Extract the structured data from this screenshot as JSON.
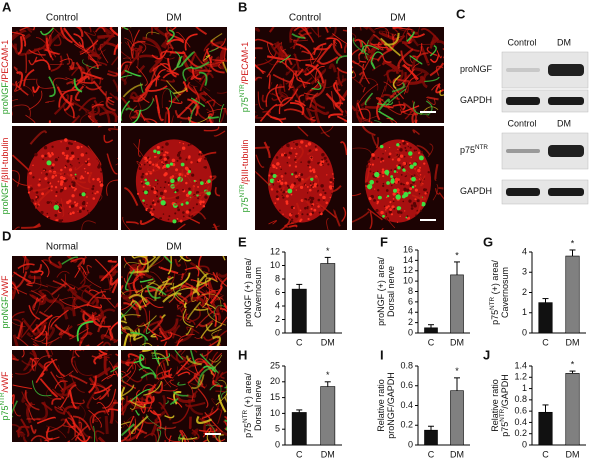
{
  "panel_a": {
    "label": "A",
    "columns": [
      "Control",
      "DM"
    ],
    "row_labels": [
      [
        "proNGF",
        "/PECAM-1"
      ],
      [
        "proNGF",
        "/βIII-tubulin"
      ]
    ]
  },
  "panel_b": {
    "label": "B",
    "columns": [
      "Control",
      "DM"
    ],
    "row_labels": [
      [
        "p75",
        "NTR",
        "/PECAM-1"
      ],
      [
        "p75",
        "NTR",
        "/βIII-tubulin"
      ]
    ]
  },
  "panel_c": {
    "label": "C",
    "blots": [
      {
        "columns": [
          "Control",
          "DM"
        ],
        "bands": [
          [
            "proNGF"
          ],
          [
            "GAPDH"
          ]
        ]
      },
      {
        "columns": [
          "Control",
          "DM"
        ],
        "bands": [
          [
            "p75",
            "NTR"
          ],
          [
            "GAPDH"
          ]
        ]
      }
    ]
  },
  "panel_d": {
    "label": "D",
    "columns": [
      "Normal",
      "DM"
    ],
    "row_labels": [
      [
        "proNGF",
        "/vWF"
      ],
      [
        "p75",
        "NTR",
        "/vWF"
      ]
    ]
  },
  "chart_data": [
    {
      "type": "bar",
      "label": "E",
      "ylabel": [
        [
          "proNGF (+) area/"
        ],
        [
          "Cavernosum"
        ]
      ],
      "categories": [
        "C",
        "DM"
      ],
      "values": [
        6.5,
        10.3
      ],
      "errors": [
        0.7,
        0.9
      ],
      "colors": [
        "#111111",
        "#808080"
      ],
      "annotation": "*",
      "ylim": [
        0,
        12
      ],
      "yticks": [
        0,
        2,
        4,
        6,
        8,
        10,
        12
      ]
    },
    {
      "type": "bar",
      "label": "F",
      "ylabel": [
        [
          "proNGF (+) area/"
        ],
        [
          "Dorsal nerve"
        ]
      ],
      "categories": [
        "C",
        "DM"
      ],
      "values": [
        1,
        11.2
      ],
      "errors": [
        0.6,
        2.5
      ],
      "colors": [
        "#111111",
        "#808080"
      ],
      "annotation": "*",
      "ylim": [
        0,
        16
      ],
      "yticks": [
        0,
        2,
        4,
        6,
        8,
        10,
        12,
        14,
        16
      ]
    },
    {
      "type": "bar",
      "label": "G",
      "ylabel": [
        [
          "p75",
          "NTR",
          " (+) area/"
        ],
        [
          "Cavernosum"
        ]
      ],
      "categories": [
        "C",
        "DM"
      ],
      "values": [
        1.5,
        3.8
      ],
      "errors": [
        0.2,
        0.3
      ],
      "colors": [
        "#111111",
        "#808080"
      ],
      "annotation": "*",
      "ylim": [
        0,
        4
      ],
      "yticks": [
        0,
        1,
        2,
        3,
        4
      ]
    },
    {
      "type": "bar",
      "label": "H",
      "ylabel": [
        [
          "p75",
          "NTR",
          " (+) area/"
        ],
        [
          "Dorsal nerve"
        ]
      ],
      "categories": [
        "C",
        "DM"
      ],
      "values": [
        10.3,
        18.5
      ],
      "errors": [
        0.8,
        1.5
      ],
      "colors": [
        "#111111",
        "#808080"
      ],
      "annotation": "*",
      "ylim": [
        0,
        25
      ],
      "yticks": [
        0,
        5,
        10,
        15,
        20,
        25
      ]
    },
    {
      "type": "bar",
      "label": "I",
      "ylabel": [
        [
          "Relative ratio"
        ],
        [
          "proNGF/GAPDH"
        ]
      ],
      "categories": [
        "C",
        "DM"
      ],
      "values": [
        0.15,
        0.55
      ],
      "errors": [
        0.04,
        0.13
      ],
      "colors": [
        "#111111",
        "#808080"
      ],
      "annotation": "*",
      "ylim": [
        0,
        0.8
      ],
      "yticks": [
        0,
        0.2,
        0.4,
        0.6,
        0.8
      ]
    },
    {
      "type": "bar",
      "label": "J",
      "ylabel": [
        [
          "Relative ratio"
        ],
        [
          "p75",
          "NTR",
          "/GAPDH"
        ]
      ],
      "categories": [
        "C",
        "DM"
      ],
      "values": [
        0.58,
        1.27
      ],
      "errors": [
        0.13,
        0.04
      ],
      "colors": [
        "#111111",
        "#808080"
      ],
      "annotation": "*",
      "ylim": [
        0,
        1.4
      ],
      "yticks": [
        0,
        0.2,
        0.4,
        0.6,
        0.8,
        1,
        1.2,
        1.4
      ]
    }
  ]
}
